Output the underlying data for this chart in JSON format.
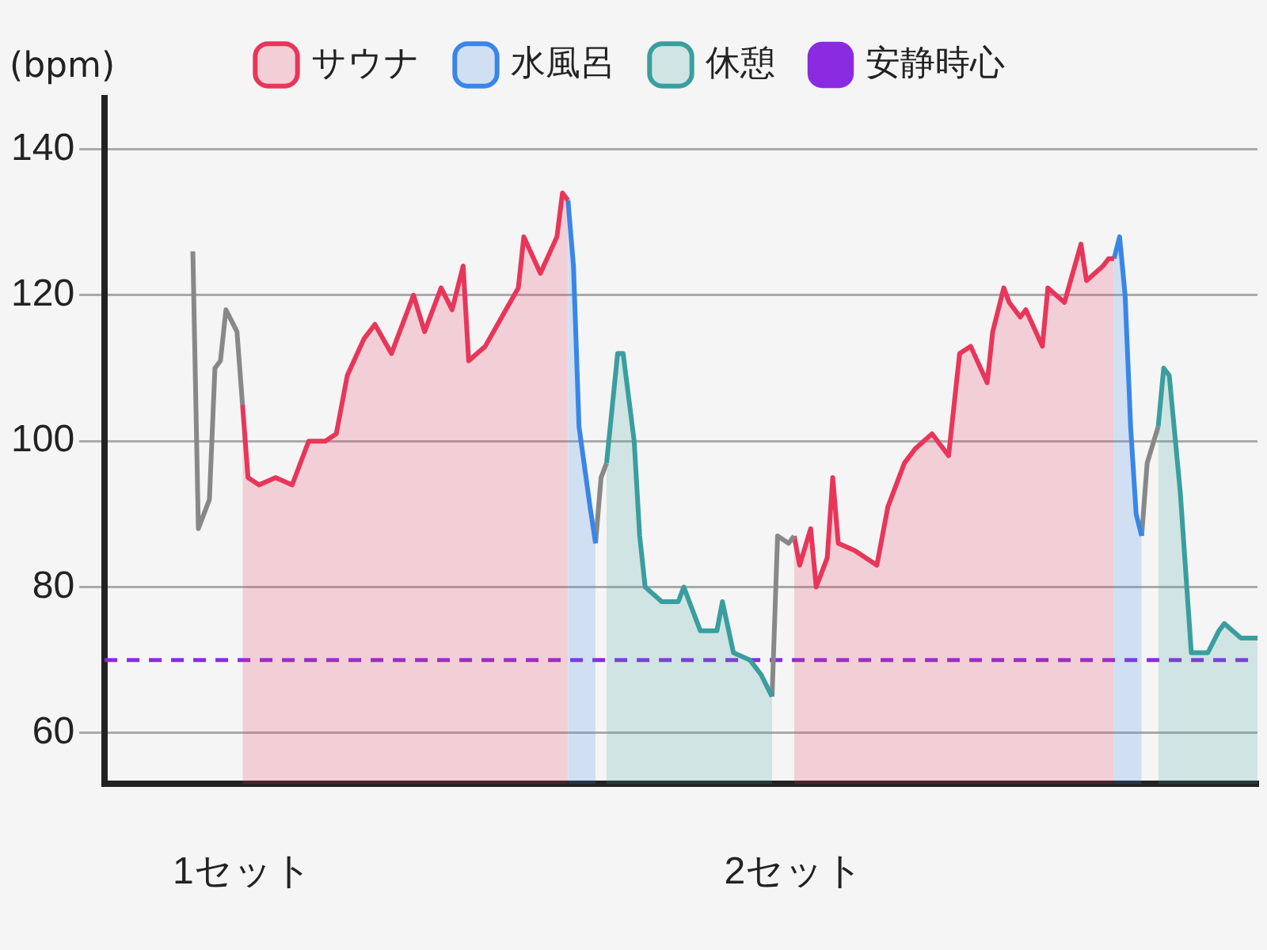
{
  "chart_data": {
    "type": "area",
    "ylabel": "(bpm)",
    "xlim": [
      0.75,
      2.84
    ],
    "ylim": [
      53,
      147
    ],
    "xticks": [
      {
        "value": 1,
        "label": "1セット"
      },
      {
        "value": 2,
        "label": "2セット"
      }
    ],
    "yticks": [
      60,
      80,
      100,
      120,
      140
    ],
    "grid": "y",
    "legend": "top",
    "marker": "none",
    "series": [
      {
        "type": "line",
        "color": "#888888",
        "x": [
          0.91,
          0.92,
          0.93,
          0.94,
          0.95,
          0.96,
          0.97,
          0.99,
          1.0
        ],
        "values": [
          126,
          88,
          90,
          92,
          110,
          111,
          118,
          115,
          105
        ]
      },
      {
        "name": "サウナ",
        "color": "#e8365a",
        "x": [
          1.0,
          1.01,
          1.03,
          1.06,
          1.09,
          1.12,
          1.15,
          1.17,
          1.19,
          1.22,
          1.24,
          1.27,
          1.3,
          1.31,
          1.33,
          1.36,
          1.38,
          1.4,
          1.41,
          1.44,
          1.47,
          1.5,
          1.51,
          1.54,
          1.57,
          1.58,
          1.59
        ],
        "values": [
          105,
          95,
          94,
          95,
          94,
          100,
          100,
          101,
          109,
          114,
          116,
          112,
          118,
          120,
          115,
          121,
          118,
          124,
          111,
          113,
          117,
          121,
          128,
          123,
          128,
          134,
          133
        ]
      },
      {
        "name": "水風呂",
        "color": "#3a86e8",
        "x": [
          1.59,
          1.6,
          1.61,
          1.63,
          1.64
        ],
        "values": [
          133,
          124,
          102,
          91,
          86
        ]
      },
      {
        "type": "line",
        "color": "#888888",
        "x": [
          1.64,
          1.65,
          1.66
        ],
        "values": [
          86,
          95,
          97
        ]
      },
      {
        "name": "休憩",
        "color": "#3a9e9e",
        "x": [
          1.66,
          1.68,
          1.69,
          1.71,
          1.72,
          1.73,
          1.76,
          1.79,
          1.8,
          1.83,
          1.86,
          1.87,
          1.89,
          1.92,
          1.94,
          1.96
        ],
        "values": [
          97,
          112,
          112,
          100,
          87,
          80,
          78,
          78,
          80,
          74,
          74,
          78,
          71,
          70,
          68,
          65
        ]
      },
      {
        "type": "line",
        "color": "#888888",
        "x": [
          1.96,
          1.97,
          1.99,
          2.0
        ],
        "values": [
          65,
          87,
          86,
          87
        ]
      },
      {
        "color": "#e8365a",
        "x": [
          2.0,
          2.01,
          2.03,
          2.04,
          2.06,
          2.07,
          2.08,
          2.11,
          2.15,
          2.17,
          2.2,
          2.22,
          2.25,
          2.28,
          2.3,
          2.32,
          2.35,
          2.36,
          2.38,
          2.39,
          2.41,
          2.42,
          2.45,
          2.46,
          2.49,
          2.52,
          2.53,
          2.56,
          2.57,
          2.58
        ],
        "values": [
          87,
          83,
          88,
          80,
          84,
          95,
          86,
          85,
          83,
          91,
          97,
          99,
          101,
          98,
          112,
          113,
          108,
          115,
          121,
          119,
          117,
          118,
          113,
          121,
          119,
          127,
          122,
          124,
          125,
          125
        ]
      },
      {
        "color": "#3a86e8",
        "x": [
          2.58,
          2.59,
          2.6,
          2.61,
          2.62,
          2.63
        ],
        "values": [
          125,
          128,
          120,
          102,
          90,
          87
        ]
      },
      {
        "type": "line",
        "color": "#888888",
        "x": [
          2.63,
          2.64,
          2.66
        ],
        "values": [
          87,
          97,
          102
        ]
      },
      {
        "color": "#3a9e9e",
        "x": [
          2.66,
          2.67,
          2.68,
          2.7,
          2.71,
          2.72,
          2.75,
          2.77,
          2.78,
          2.81,
          2.84
        ],
        "values": [
          102,
          110,
          109,
          93,
          82,
          71,
          71,
          74,
          75,
          73,
          73
        ]
      }
    ],
    "ref_lines": [
      {
        "axis": "y",
        "value": 70,
        "label": "安静時心",
        "color": "#8a2be2",
        "line_style": "dashed"
      }
    ]
  }
}
